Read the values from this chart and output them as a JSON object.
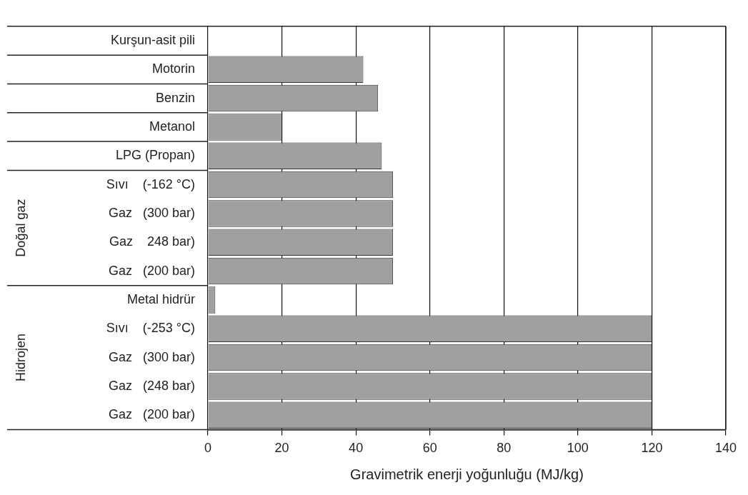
{
  "chart_data": {
    "type": "bar",
    "orientation": "horizontal",
    "xlabel": "Gravimetrik enerji yoğunluğu (MJ/kg)",
    "categories": [
      "Kurşun-asit pili",
      "Motorin",
      "Benzin",
      "Metanol",
      "LPG (Propan)",
      "Sıvı    (-162 °C)",
      "Gaz   (300 bar)",
      "Gaz    248 bar)",
      "Gaz   (200 bar)",
      "Metal hidrür",
      "Sıvı    (-253 °C)",
      "Gaz   (300 bar)",
      "Gaz   (248 bar)",
      "Gaz   (200 bar)"
    ],
    "values": [
      null,
      42,
      46,
      20,
      47,
      50,
      50,
      50,
      50,
      2,
      120,
      120,
      120,
      120
    ],
    "color": "#a0a0a0",
    "xlim": [
      0,
      140
    ],
    "xticks": [
      0,
      20,
      40,
      60,
      80,
      100,
      120,
      140
    ],
    "grid": "x",
    "legend": false,
    "annotations": [
      "Doğal gaz",
      "Hidrojen"
    ]
  }
}
